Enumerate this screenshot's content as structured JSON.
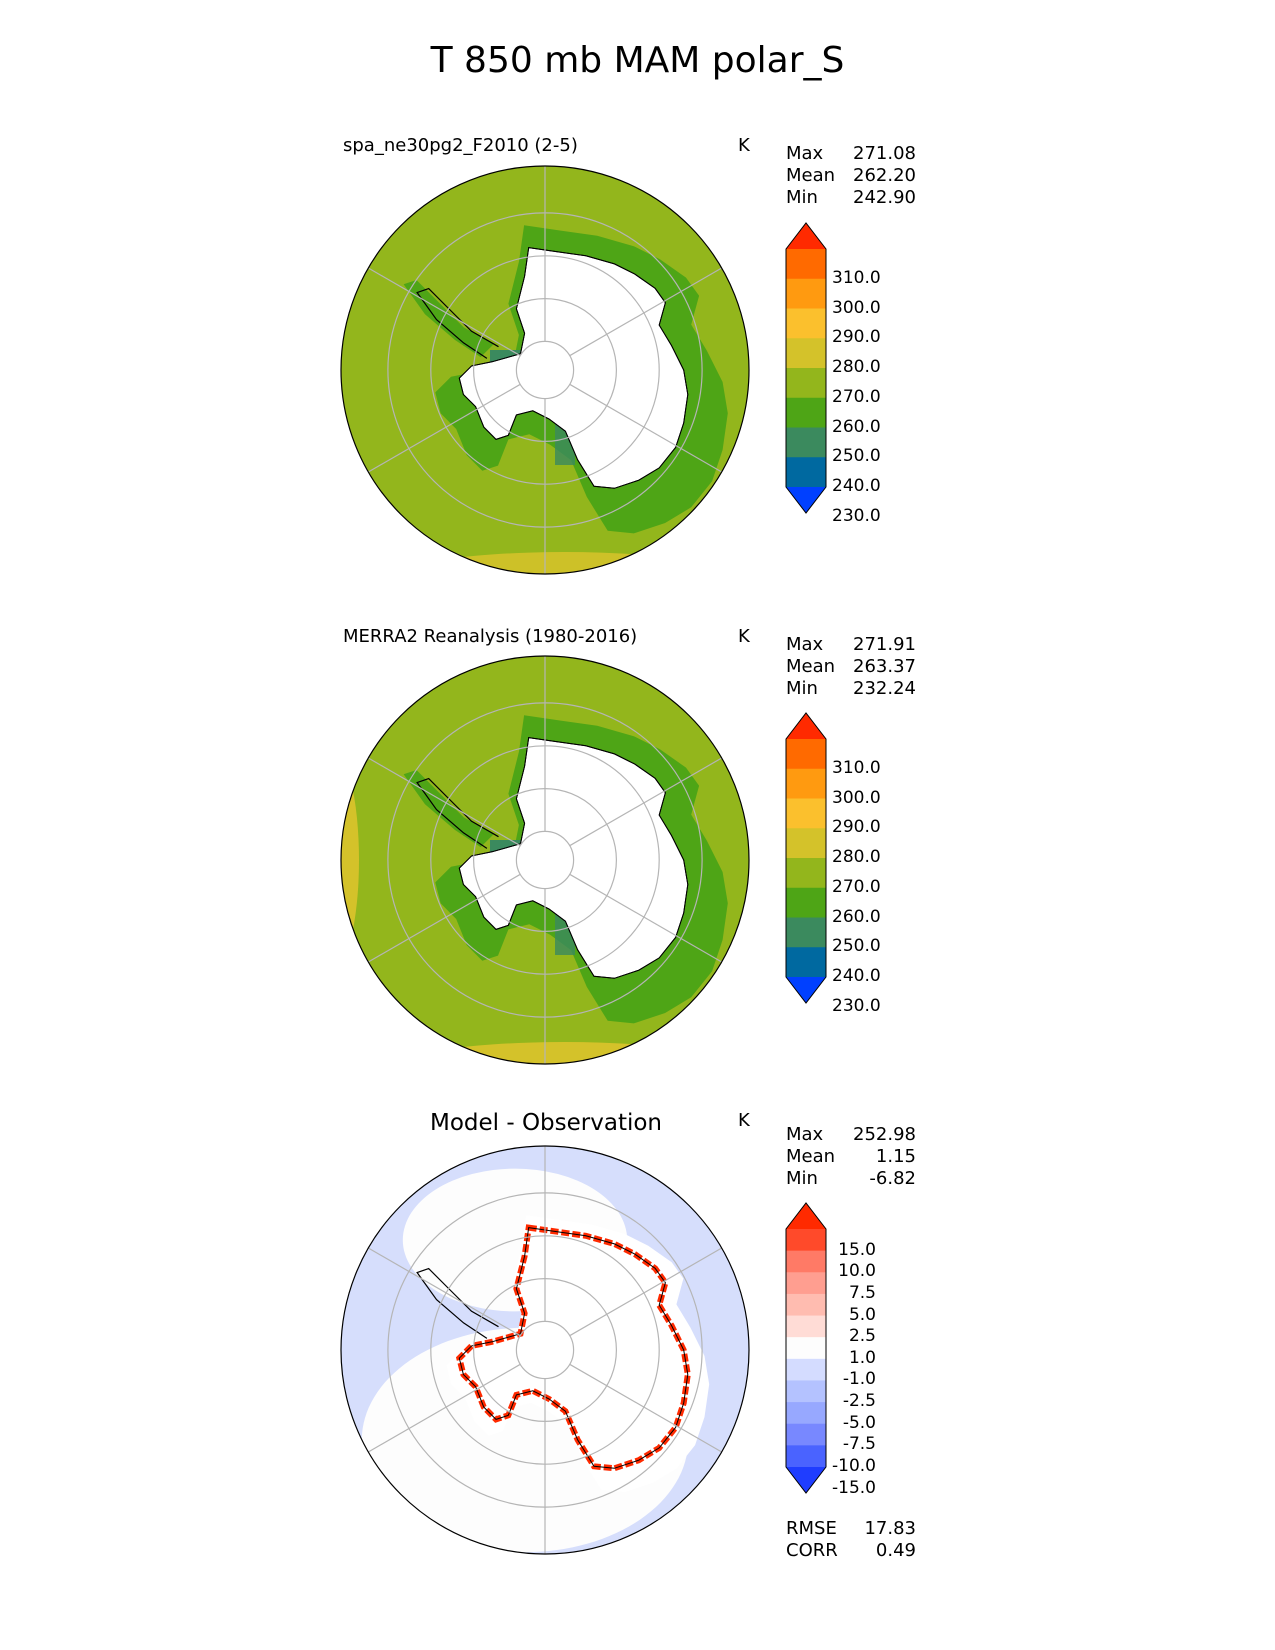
{
  "title": "T 850 mb MAM polar_S",
  "panels": [
    {
      "title": "spa_ne30pg2_F2010 (2-5)",
      "unit": "K",
      "stats": [
        [
          "Max",
          "271.08"
        ],
        [
          "Mean",
          "262.20"
        ],
        [
          "Min",
          "242.90"
        ]
      ],
      "colorbar": {
        "labels": [
          "310.0",
          "300.0",
          "290.0",
          "280.0",
          "270.0",
          "260.0",
          "250.0",
          "240.0",
          "230.0"
        ],
        "colors": [
          "#ff2a00",
          "#ff6a00",
          "#ff9a10",
          "#fbc02d",
          "#d4c22a",
          "#93b61c",
          "#4ea516",
          "#3b8a5e",
          "#0069a0",
          "#0040ff"
        ]
      },
      "ocean_color": "#93b61c",
      "shelf_color": "#4ea516",
      "extra_color": "#d4c22a"
    },
    {
      "title": "MERRA2 Reanalysis (1980-2016)",
      "unit": "K",
      "stats": [
        [
          "Max",
          "271.91"
        ],
        [
          "Mean",
          "263.37"
        ],
        [
          "Min",
          "232.24"
        ]
      ],
      "colorbar": {
        "labels": [
          "310.0",
          "300.0",
          "290.0",
          "280.0",
          "270.0",
          "260.0",
          "250.0",
          "240.0",
          "230.0"
        ],
        "colors": [
          "#ff2a00",
          "#ff6a00",
          "#ff9a10",
          "#fbc02d",
          "#d4c22a",
          "#93b61c",
          "#4ea516",
          "#3b8a5e",
          "#0069a0",
          "#0040ff"
        ]
      },
      "ocean_color": "#93b61c",
      "shelf_color": "#4ea516",
      "extra_color": "#d4c22a"
    },
    {
      "title": "Model - Observation",
      "unit": "K",
      "stats": [
        [
          "Max",
          "252.98"
        ],
        [
          "Mean",
          "1.15"
        ],
        [
          "Min",
          "-6.82"
        ]
      ],
      "colorbar": {
        "labels": [
          "15.0",
          "10.0",
          "7.5",
          "5.0",
          "2.5",
          "1.0",
          "-1.0",
          "-2.5",
          "-5.0",
          "-7.5",
          "-10.0",
          "-15.0"
        ],
        "colors": [
          "#ff2a00",
          "#ff4a2a",
          "#ff7a66",
          "#ff9e90",
          "#ffbcb0",
          "#ffdcd6",
          "#fdfdfd",
          "#d4dcff",
          "#b4c2ff",
          "#97a8ff",
          "#7888ff",
          "#4a63ff",
          "#1f3dff"
        ]
      },
      "ocean_color": "#d6defc",
      "shelf_color": "#ffffff",
      "extra_color": "#ff2a00",
      "metrics": [
        [
          "RMSE",
          "17.83"
        ],
        [
          "CORR",
          "0.49"
        ]
      ]
    }
  ],
  "chart_data": {
    "type": "heatmap",
    "title": "T 850 mb MAM polar_S",
    "projection": "south polar stereographic",
    "panels": [
      {
        "title": "spa_ne30pg2_F2010 (2-5)",
        "unit": "K",
        "max": 271.08,
        "mean": 262.2,
        "min": 242.9,
        "levels": [
          230,
          240,
          250,
          260,
          270,
          280,
          290,
          300,
          310
        ]
      },
      {
        "title": "MERRA2 Reanalysis (1980-2016)",
        "unit": "K",
        "max": 271.91,
        "mean": 263.37,
        "min": 232.24,
        "levels": [
          230,
          240,
          250,
          260,
          270,
          280,
          290,
          300,
          310
        ]
      },
      {
        "title": "Model - Observation",
        "unit": "K",
        "max": 252.98,
        "mean": 1.15,
        "min": -6.82,
        "levels": [
          -15,
          -10,
          -7.5,
          -5,
          -2.5,
          -1,
          1,
          2.5,
          5,
          7.5,
          10,
          15
        ],
        "rmse": 17.83,
        "corr": 0.49
      }
    ]
  }
}
